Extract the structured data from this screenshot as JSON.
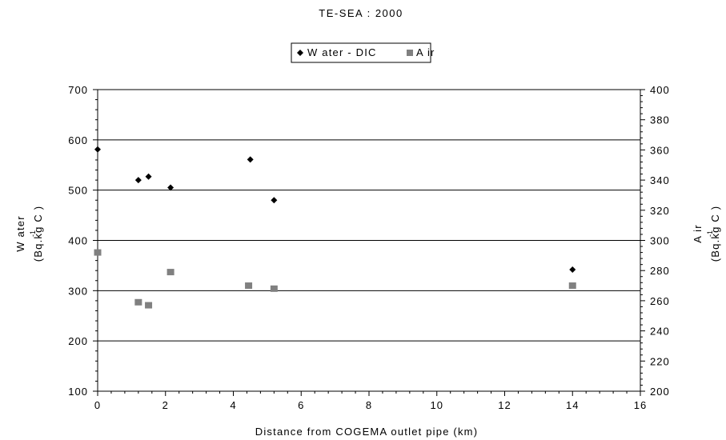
{
  "chart_data": {
    "type": "scatter",
    "title": "TE-SEA : 2000",
    "xlabel": "Distance from COGEMA outlet pipe (km)",
    "ylabel_left": [
      "W ater",
      "(Bq.kg C )"
    ],
    "ylabel_right": [
      "A ir",
      "(Bq.kg C )"
    ],
    "superscript": "-1",
    "xlim": [
      0,
      16
    ],
    "ylim_left": [
      100,
      700
    ],
    "ylim_right": [
      200,
      400
    ],
    "x_ticks": [
      0,
      2,
      4,
      6,
      8,
      10,
      12,
      14,
      16
    ],
    "y_left_ticks": [
      100,
      200,
      300,
      400,
      500,
      600,
      700
    ],
    "y_right_ticks": [
      200,
      220,
      240,
      260,
      280,
      300,
      320,
      340,
      360,
      380,
      400
    ],
    "legend_position": "top-center",
    "grid": "horizontal major lines on left axis",
    "series": [
      {
        "name": "W ater - DIC",
        "axis": "left",
        "marker": "diamond",
        "color": "#000000",
        "x": [
          0,
          1.2,
          1.5,
          2.15,
          4.5,
          5.2,
          14.0
        ],
        "y": [
          581,
          520,
          527,
          505,
          561,
          480,
          342
        ]
      },
      {
        "name": "A ir",
        "axis": "right",
        "marker": "square",
        "color": "#808080",
        "x": [
          0,
          1.2,
          1.5,
          2.15,
          4.45,
          5.2,
          14.0
        ],
        "y": [
          292,
          259,
          257,
          279,
          270,
          268,
          270
        ]
      }
    ]
  }
}
